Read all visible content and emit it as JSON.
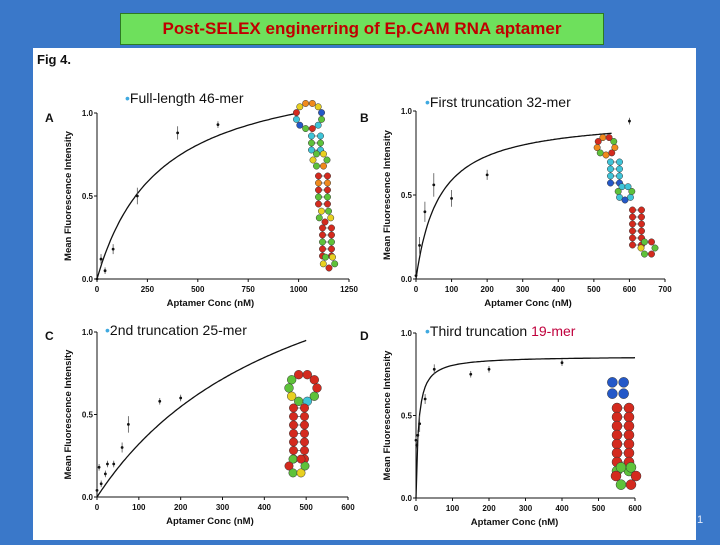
{
  "slide": {
    "title": "Post-SELEX enginerring of Ep.CAM RNA aptamer",
    "figure_label": "Fig 4.",
    "slide_number": "1"
  },
  "colors": {
    "background": "#3a78c9",
    "title_bg": "#6ee05c",
    "title_text": "#c00000",
    "bullet": "#3fa9e0",
    "highlight": "#c0003c",
    "rna_red": "#d42a1e",
    "rna_green": "#5ec23a",
    "rna_blue": "#2458c8",
    "rna_cyan": "#3ec4d8",
    "rna_orange": "#f08a1c",
    "rna_yellow": "#e8d020"
  },
  "chart_data": [
    {
      "type": "scatter",
      "panel": "A",
      "title": "Full-length 46-mer",
      "xlabel": "Aptamer Conc (nM)",
      "ylabel": "Mean Fluorescence Intensity",
      "xlim": [
        0,
        1250
      ],
      "ylim": [
        0,
        1.0
      ],
      "xticks": [
        0,
        250,
        500,
        750,
        1000,
        1250
      ],
      "yticks": [
        "0.0",
        "0.5",
        "1.0"
      ],
      "x": [
        0,
        20,
        40,
        80,
        200,
        400,
        600
      ],
      "y": [
        0.0,
        0.12,
        0.05,
        0.18,
        0.5,
        0.88,
        0.93
      ],
      "err": [
        0.01,
        0.03,
        0.02,
        0.03,
        0.05,
        0.04,
        0.02
      ],
      "fit": {
        "bmax": 1.31,
        "kd": 310,
        "x_end": 1000
      }
    },
    {
      "type": "scatter",
      "panel": "B",
      "title": "First truncation 32-mer",
      "xlabel": "Aptamer Conc (nM)",
      "ylabel": "Mean Fluorescence Intensity",
      "xlim": [
        0,
        700
      ],
      "ylim": [
        0,
        1.0
      ],
      "xticks": [
        0,
        100,
        200,
        300,
        400,
        500,
        600,
        700
      ],
      "yticks": [
        "0.0",
        "0.5",
        "1.0"
      ],
      "x": [
        0,
        10,
        25,
        50,
        100,
        200,
        600
      ],
      "y": [
        0.02,
        0.2,
        0.4,
        0.56,
        0.48,
        0.62,
        0.94
      ],
      "err": [
        0.01,
        0.05,
        0.06,
        0.07,
        0.05,
        0.03,
        0.02
      ],
      "fit": {
        "bmax": 0.97,
        "kd": 65,
        "x_end": 550
      }
    },
    {
      "type": "scatter",
      "panel": "C",
      "title": "2nd truncation 25-mer",
      "xlabel": "Aptamer Conc (nM)",
      "ylabel": "Mean Fluorescence Intensity",
      "xlim": [
        0,
        600
      ],
      "ylim": [
        0,
        1.0
      ],
      "xticks": [
        0,
        100,
        200,
        300,
        400,
        500,
        600
      ],
      "yticks": [
        "0.0",
        "0.5",
        "1.0"
      ],
      "x": [
        0,
        5,
        10,
        20,
        25,
        40,
        60,
        75,
        150,
        200
      ],
      "y": [
        0.04,
        0.18,
        0.08,
        0.14,
        0.2,
        0.2,
        0.3,
        0.44,
        0.58,
        0.6
      ],
      "err": [
        0.01,
        0.02,
        0.02,
        0.02,
        0.02,
        0.02,
        0.03,
        0.05,
        0.02,
        0.02
      ],
      "fit": {
        "bmax": 1.86,
        "kd": 480,
        "x_end": 500
      }
    },
    {
      "type": "scatter",
      "panel": "D",
      "title": "Third truncation 19-mer",
      "xlabel": "Aptamer Conc (nM)",
      "ylabel": "Mean Fluorescence Intensity",
      "xlim": [
        0,
        600
      ],
      "ylim": [
        0,
        1.0
      ],
      "xticks": [
        0,
        100,
        200,
        300,
        400,
        500,
        600
      ],
      "yticks": [
        "0.0",
        "0.5",
        "1.0"
      ],
      "x": [
        0,
        2,
        5,
        10,
        25,
        50,
        150,
        200,
        400
      ],
      "y": [
        0.35,
        0.32,
        0.38,
        0.45,
        0.6,
        0.78,
        0.75,
        0.78,
        0.82
      ],
      "err": [
        0.02,
        0.02,
        0.03,
        0.05,
        0.03,
        0.03,
        0.02,
        0.02,
        0.02
      ],
      "fit": {
        "bmax": 0.86,
        "kd": 7,
        "x_end": 600
      }
    }
  ]
}
